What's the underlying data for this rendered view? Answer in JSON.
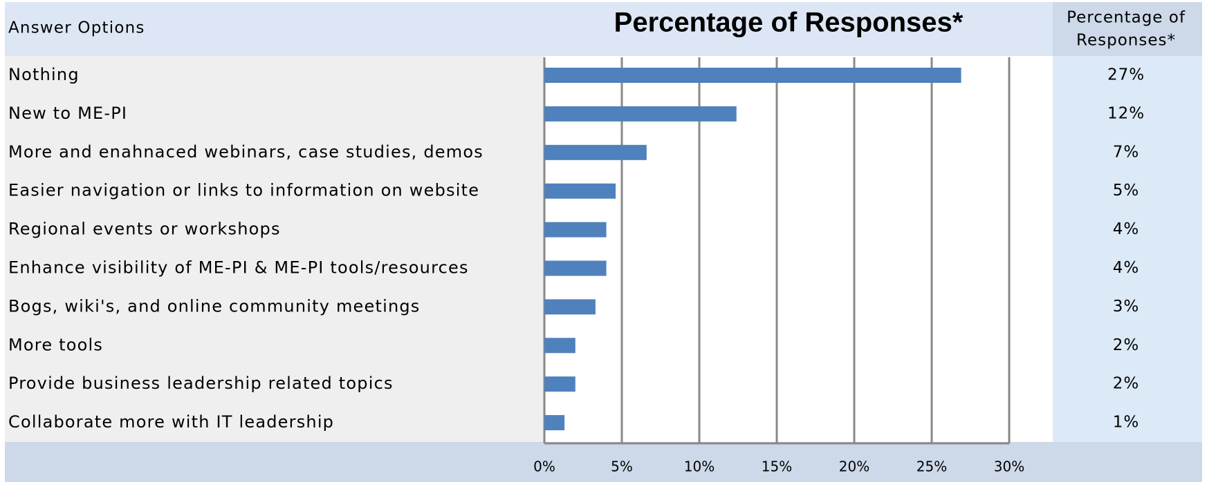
{
  "chart_data": {
    "type": "bar",
    "orientation": "horizontal",
    "title": "Percentage of Responses*",
    "category_header": "Answer Options",
    "value_header": [
      "Percentage of",
      "Responses*"
    ],
    "categories": [
      "Nothing",
      "New to ME-PI",
      "More and enahnaced webinars, case studies, demos",
      "Easier navigation or links to information on website",
      "Regional events or workshops",
      "Enhance visibility of ME-PI & ME-PI tools/resources",
      "Bogs, wiki's, and online community meetings",
      "More tools",
      "Provide business leadership related topics",
      "Collaborate more with IT leadership"
    ],
    "values": [
      26.9,
      12.4,
      6.6,
      4.6,
      4.0,
      4.0,
      3.3,
      2.0,
      2.0,
      1.3
    ],
    "value_labels": [
      "27%",
      "12%",
      "7%",
      "5%",
      "4%",
      "4%",
      "3%",
      "2%",
      "2%",
      "1%"
    ],
    "color": "#4f81bd",
    "xlim": [
      0,
      30
    ],
    "xticks": [
      {
        "value": 0,
        "label": "0%"
      },
      {
        "value": 5,
        "label": "5%"
      },
      {
        "value": 10,
        "label": "10%"
      },
      {
        "value": 15,
        "label": "15%"
      },
      {
        "value": 20,
        "label": "20%"
      },
      {
        "value": 25,
        "label": "25%"
      },
      {
        "value": 30,
        "label": "30%"
      }
    ],
    "grid": true
  }
}
